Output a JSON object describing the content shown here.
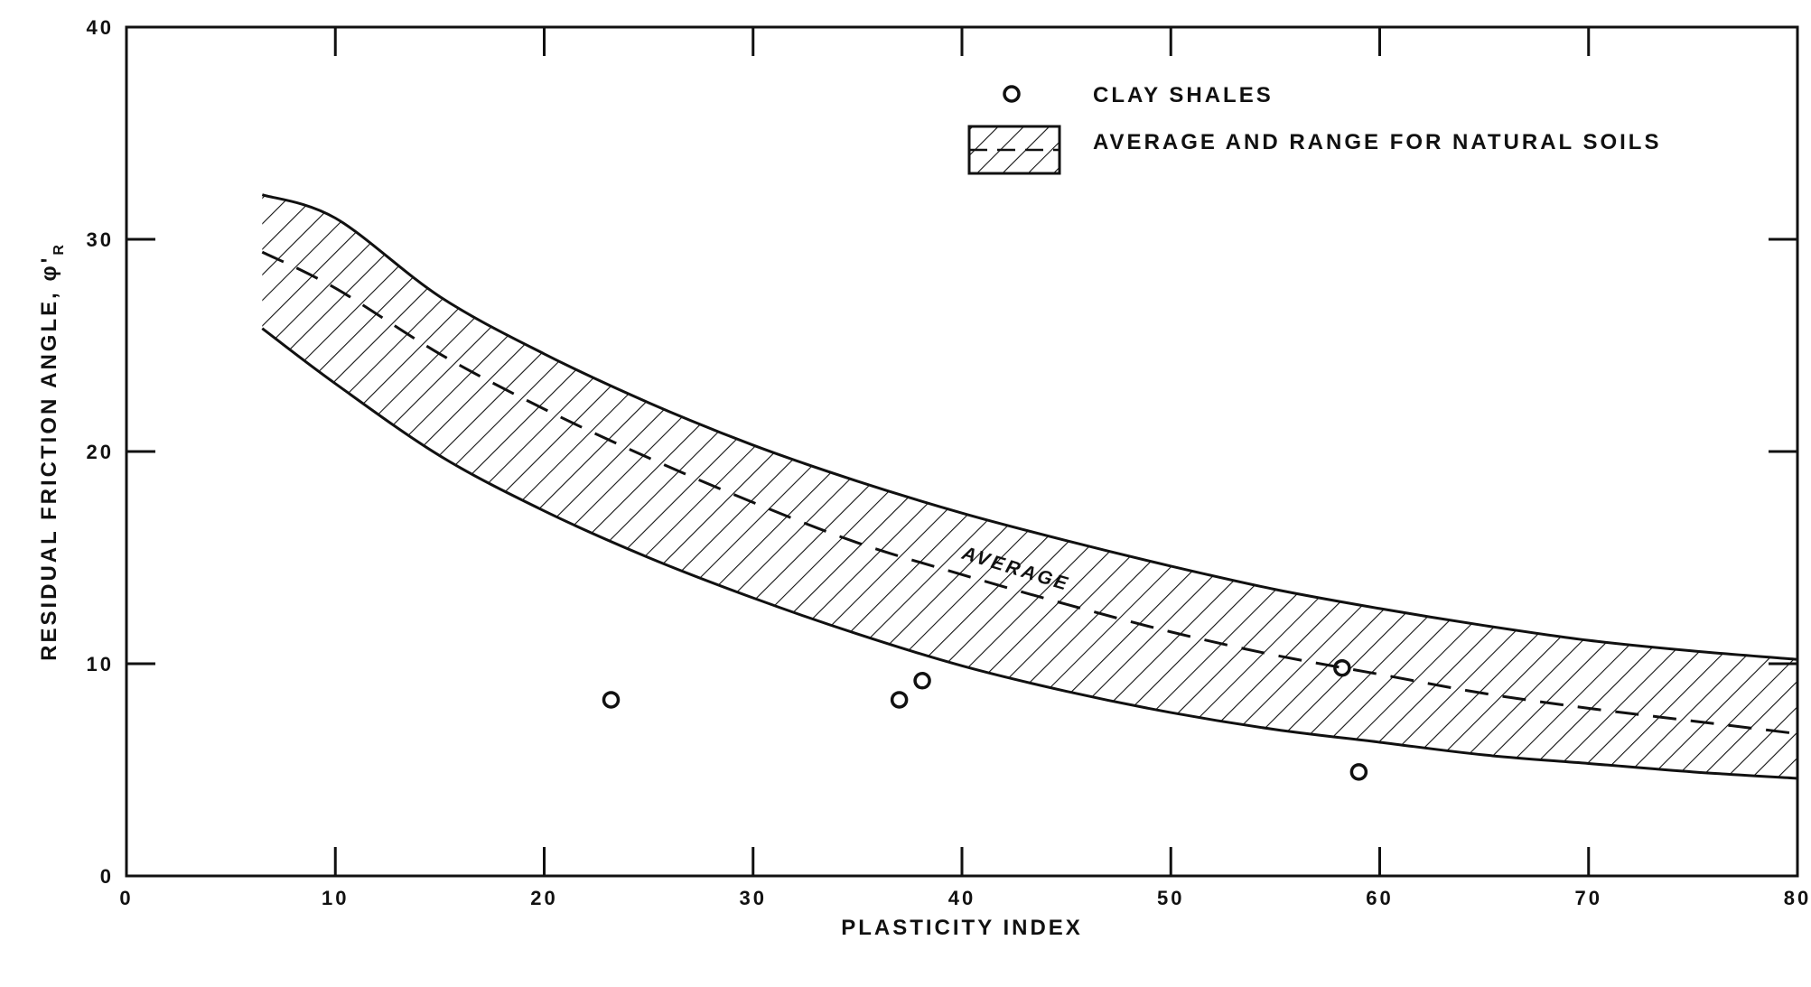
{
  "chart_data": {
    "type": "scatter",
    "xlabel": "PLASTICITY INDEX",
    "ylabel": "RESIDUAL FRICTION ANGLE, φ'",
    "ylabel_subscript": "R",
    "xlim": [
      0,
      80
    ],
    "ylim": [
      0,
      40
    ],
    "x_ticks": [
      0,
      10,
      20,
      30,
      40,
      50,
      60,
      70,
      80
    ],
    "y_ticks": [
      0,
      10,
      20,
      30,
      40
    ],
    "x_tick_labels": [
      "0",
      "10",
      "20",
      "30",
      "40",
      "50",
      "60",
      "70",
      "80"
    ],
    "y_tick_labels": [
      "0",
      "10",
      "20",
      "30",
      "40"
    ],
    "grid": false,
    "legend_position": "top-right",
    "legend": [
      {
        "label": "CLAY SHALES",
        "marker": "open-circle"
      },
      {
        "label": "AVERAGE AND RANGE FOR NATURAL SOILS",
        "marker": "hatched-band-dashed"
      }
    ],
    "series": [
      {
        "name": "CLAY SHALES",
        "kind": "points",
        "x": [
          23.2,
          37,
          38.1,
          58.2,
          59
        ],
        "y": [
          8.3,
          8.3,
          9.2,
          9.8,
          4.9
        ]
      },
      {
        "name": "AVERAGE AND RANGE FOR NATURAL SOILS",
        "kind": "band",
        "x": [
          6.5,
          10,
          15,
          20,
          25,
          30,
          35,
          40,
          45,
          50,
          55,
          60,
          65,
          70,
          75,
          80
        ],
        "upper": [
          32.1,
          31.0,
          27.3,
          24.6,
          22.3,
          20.3,
          18.6,
          17.1,
          15.8,
          14.6,
          13.5,
          12.6,
          11.8,
          11.1,
          10.6,
          10.2
        ],
        "lower": [
          25.8,
          23.2,
          19.8,
          17.2,
          15.0,
          13.1,
          11.4,
          9.9,
          8.7,
          7.7,
          6.9,
          6.3,
          5.7,
          5.3,
          4.9,
          4.6
        ],
        "average": [
          29.4,
          27.7,
          24.6,
          22.0,
          19.7,
          17.6,
          15.7,
          14.2,
          12.8,
          11.5,
          10.4,
          9.5,
          8.6,
          7.9,
          7.3,
          6.7
        ]
      }
    ],
    "annotations": [
      {
        "text": "AVERAGE",
        "x": 42.5,
        "y": 14.2
      }
    ]
  }
}
